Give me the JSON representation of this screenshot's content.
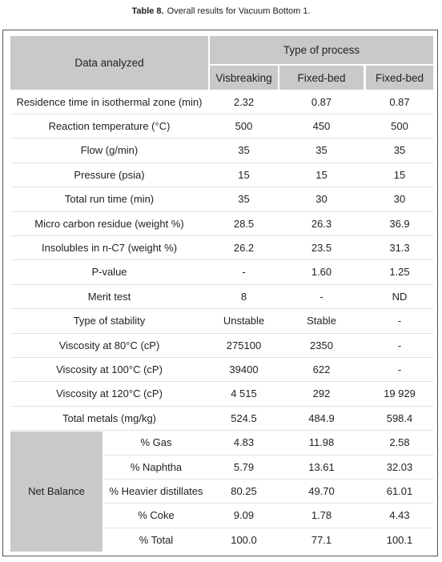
{
  "caption": {
    "label": "Table 8.",
    "text": "Overall results for Vacuum Bottom 1."
  },
  "table": {
    "header": {
      "data_analyzed": "Data analyzed",
      "type_of_process": "Type of process",
      "columns": [
        "Visbreaking",
        "Fixed-bed",
        "Fixed-bed"
      ]
    },
    "rows": [
      [
        "Residence time in isothermal zone (min)",
        "2.32",
        "0.87",
        "0.87"
      ],
      [
        "Reaction temperature (°C)",
        "500",
        "450",
        "500"
      ],
      [
        "Flow (g/min)",
        "35",
        "35",
        "35"
      ],
      [
        "Pressure (psia)",
        "15",
        "15",
        "15"
      ],
      [
        "Total run time (min)",
        "35",
        "30",
        "30"
      ],
      [
        "Micro carbon residue (weight %)",
        "28.5",
        "26.3",
        "36.9"
      ],
      [
        "Insolubles in n-C7 (weight %)",
        "26.2",
        "23.5",
        "31.3"
      ],
      [
        "P-value",
        "-",
        "1.60",
        "1.25"
      ],
      [
        "Merit test",
        "8",
        "-",
        "ND"
      ],
      [
        "Type of stability",
        "Unstable",
        "Stable",
        "-"
      ],
      [
        "Viscosity at 80°C (cP)",
        "275100",
        "2350",
        "-"
      ],
      [
        "Viscosity at 100°C (cP)",
        "39400",
        "622",
        "-"
      ],
      [
        "Viscosity at 120°C (cP)",
        "4 515",
        "292",
        "19 929"
      ],
      [
        "Total metals (mg/kg)",
        "524.5",
        "484.9",
        "598.4"
      ]
    ],
    "net_balance": {
      "label": "Net Balance",
      "rows": [
        [
          "% Gas",
          "4.83",
          "11.98",
          "2.58"
        ],
        [
          "% Naphtha",
          "5.79",
          "13.61",
          "32.03"
        ],
        [
          "% Heavier distillates",
          "80.25",
          "49.70",
          "61.01"
        ],
        [
          "% Coke",
          "9.09",
          "1.78",
          "4.43"
        ],
        [
          "% Total",
          "100.0",
          "77.1",
          "100.1"
        ]
      ]
    }
  }
}
